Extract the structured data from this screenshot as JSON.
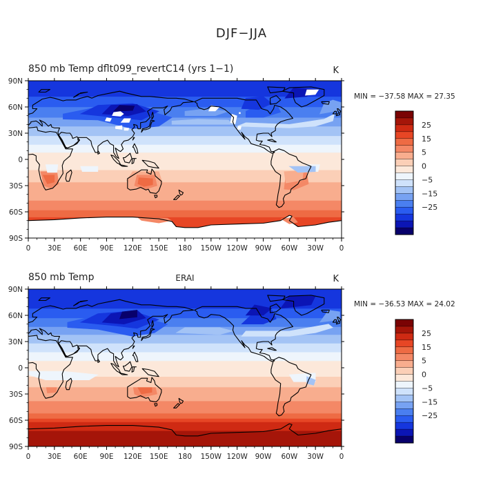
{
  "figure": {
    "title": "DJF−JJA"
  },
  "palette": [
    "#08006b",
    "#0b15b5",
    "#1536de",
    "#2a5cf0",
    "#4a7ff0",
    "#77a2f2",
    "#a3c3f5",
    "#cfe2fb",
    "#eef5fc",
    "#fce8da",
    "#fbcfb7",
    "#f8ad8e",
    "#f48866",
    "#ee6b44",
    "#e74625",
    "#cf2a13",
    "#a51509",
    "#7a0304"
  ],
  "colorbar_labels": [
    "25",
    "15",
    "5",
    "0",
    "−5",
    "−15",
    "−25"
  ],
  "axes": {
    "x_ticks": [
      "0",
      "30E",
      "60E",
      "90E",
      "120E",
      "150E",
      "180",
      "150W",
      "120W",
      "90W",
      "60W",
      "30W",
      "0"
    ],
    "y_ticks": [
      "90N",
      "60N",
      "30N",
      "0",
      "30S",
      "60S",
      "90S"
    ]
  },
  "panels": [
    {
      "left_title": "850 mb Temp dflt099_revertC14 (yrs 1−1)",
      "center_title": "",
      "units": "K",
      "min_max": "MIN = −37.58 MAX =  27.35",
      "has_missing": true
    },
    {
      "left_title": "850 mb Temp",
      "center_title": "ERAI",
      "units": "K",
      "min_max": "MIN = −36.53 MAX =  24.02",
      "has_missing": false
    }
  ],
  "chart_data": [
    {
      "type": "heatmap",
      "title": "850 mb Temp dflt099_revertC14 (yrs 1−1)",
      "units": "K",
      "min": -37.58,
      "max": 27.35,
      "x_range": [
        0,
        360
      ],
      "y_range": [
        -90,
        90
      ],
      "color_levels": [
        -30,
        -25,
        -20,
        -15,
        -10,
        -5,
        -2.5,
        0,
        2.5,
        5,
        10,
        15,
        20,
        25,
        30
      ]
    },
    {
      "type": "heatmap",
      "title": "850 mb Temp",
      "subtitle": "ERAI",
      "units": "K",
      "min": -36.53,
      "max": 24.02,
      "x_range": [
        0,
        360
      ],
      "y_range": [
        -90,
        90
      ],
      "color_levels": [
        -30,
        -25,
        -20,
        -15,
        -10,
        -5,
        -2.5,
        0,
        2.5,
        5,
        10,
        15,
        20,
        25,
        30
      ]
    }
  ]
}
